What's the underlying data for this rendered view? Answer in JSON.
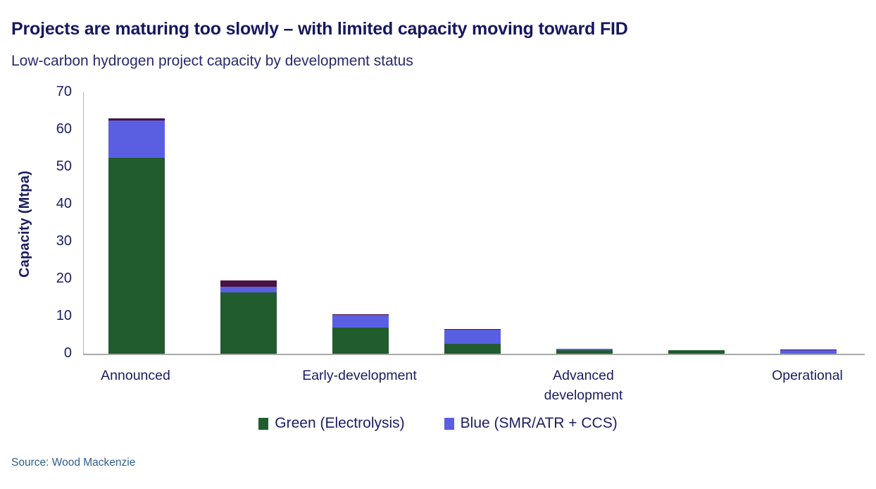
{
  "header": {
    "title": "Projects are maturing too slowly – with limited capacity moving toward FID",
    "subtitle": "Low-carbon hydrogen project capacity by development status"
  },
  "footer": {
    "source": "Source: Wood Mackenzie"
  },
  "colors": {
    "green": "#215c2f",
    "blue": "#5a5fe2",
    "dark_top": "#4a1242",
    "axis_line": "#a8a8a8",
    "text_navy": "#1b1c63",
    "title_navy": "#16175f",
    "source_blue": "#2e5e8d"
  },
  "chart_data": {
    "type": "bar",
    "stacked": true,
    "title": "Projects are maturing too slowly – with limited capacity moving toward FID",
    "subtitle": "Low-carbon hydrogen project capacity by development status",
    "xlabel": "",
    "ylabel": "Capacity (Mtpa)",
    "ylim": [
      0,
      70
    ],
    "yticks": [
      0,
      10,
      20,
      30,
      40,
      50,
      60,
      70
    ],
    "grid": false,
    "legend_position": "bottom",
    "categories": [
      "Announced",
      "",
      "Early-development",
      "",
      "Advanced\ndevelopment",
      "",
      "Operational"
    ],
    "series": [
      {
        "name": "Green (Electrolysis)",
        "color": "#215c2f",
        "values": [
          52.5,
          16.5,
          7,
          2.7,
          0.9,
          1,
          0
        ]
      },
      {
        "name": "Blue (SMR/ATR + CCS)",
        "color": "#5a5fe2",
        "values": [
          10,
          1.5,
          3.4,
          3.8,
          0.3,
          0,
          1
        ]
      },
      {
        "name": "unlabeled-dark-segment",
        "color": "#4a1242",
        "values": [
          0.5,
          1.7,
          0.2,
          0.2,
          0,
          0,
          0.2
        ]
      }
    ],
    "totals": [
      63,
      19.7,
      10.6,
      6.7,
      1.2,
      1,
      1.2
    ],
    "legend": [
      {
        "label": "Green (Electrolysis)",
        "color": "#215c2f"
      },
      {
        "label": "Blue (SMR/ATR + CCS)",
        "color": "#5a5fe2"
      }
    ]
  }
}
